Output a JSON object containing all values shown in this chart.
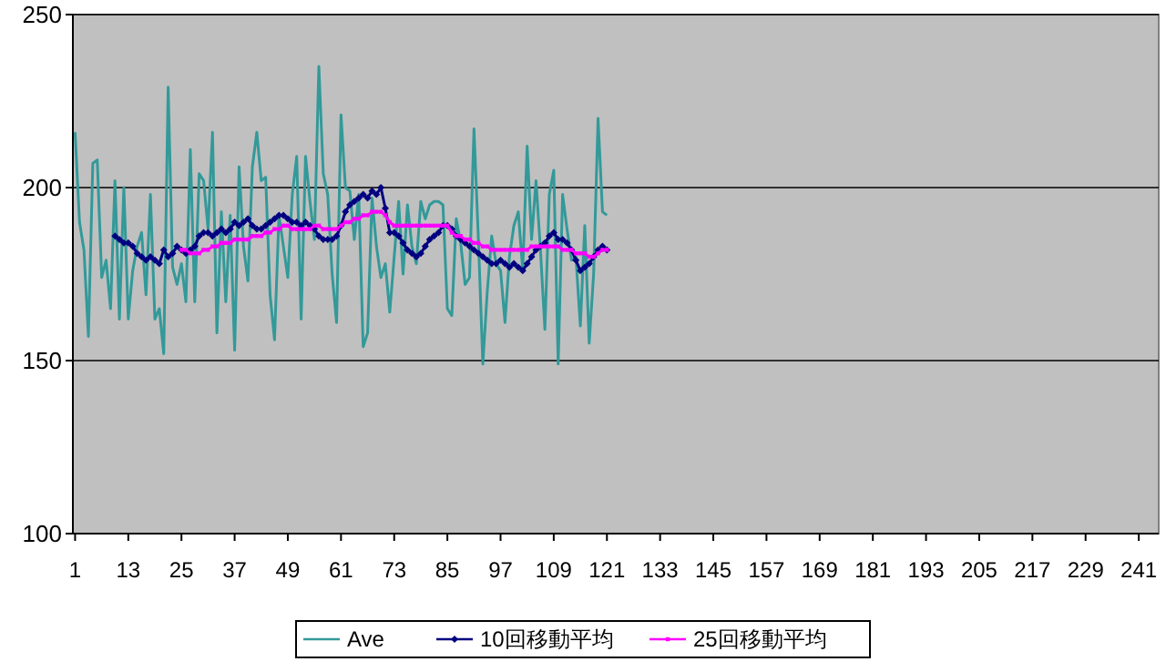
{
  "chart_data": {
    "type": "line",
    "x": [
      1,
      2,
      3,
      4,
      5,
      6,
      7,
      8,
      9,
      10,
      11,
      12,
      13,
      14,
      15,
      16,
      17,
      18,
      19,
      20,
      21,
      22,
      23,
      24,
      25,
      26,
      27,
      28,
      29,
      30,
      31,
      32,
      33,
      34,
      35,
      36,
      37,
      38,
      39,
      40,
      41,
      42,
      43,
      44,
      45,
      46,
      47,
      48,
      49,
      50,
      51,
      52,
      53,
      54,
      55,
      56,
      57,
      58,
      59,
      60,
      61,
      62,
      63,
      64,
      65,
      66,
      67,
      68,
      69,
      70,
      71,
      72,
      73,
      74,
      75,
      76,
      77,
      78,
      79,
      80,
      81,
      82,
      83,
      84,
      85,
      86,
      87,
      88,
      89,
      90,
      91,
      92,
      93,
      94,
      95,
      96,
      97,
      98,
      99,
      100,
      101,
      102,
      103,
      104,
      105,
      106,
      107,
      108,
      109,
      110,
      111,
      112,
      113,
      114,
      115,
      116,
      117,
      118,
      119,
      120,
      121
    ],
    "series": [
      {
        "name": "Ave",
        "color": "#339999",
        "marker": "none",
        "values": [
          216,
          190,
          182,
          157,
          207,
          208,
          174,
          179,
          165,
          202,
          162,
          200,
          162,
          176,
          183,
          187,
          169,
          198,
          162,
          165,
          152,
          229,
          177,
          172,
          178,
          167,
          211,
          167,
          204,
          202,
          188,
          216,
          158,
          193,
          167,
          192,
          153,
          206,
          183,
          173,
          206,
          216,
          202,
          203,
          169,
          156,
          192,
          183,
          174,
          198,
          209,
          162,
          209,
          196,
          185,
          235,
          204,
          198,
          175,
          161,
          221,
          200,
          199,
          185,
          198,
          154,
          158,
          197,
          183,
          174,
          178,
          164,
          180,
          196,
          175,
          195,
          183,
          178,
          196,
          191,
          195,
          196,
          196,
          195,
          165,
          163,
          191,
          184,
          172,
          174,
          217,
          185,
          149,
          170,
          186,
          178,
          176,
          161,
          180,
          189,
          193,
          176,
          212,
          185,
          202,
          182,
          159,
          198,
          205,
          149,
          198,
          188,
          179,
          180,
          160,
          189,
          155,
          175,
          220,
          193,
          192
        ]
      },
      {
        "name": "10回移動平均",
        "color": "#000080",
        "marker": "diamond",
        "values": [
          null,
          null,
          null,
          null,
          null,
          null,
          null,
          null,
          null,
          186,
          185,
          184,
          184,
          183,
          181,
          180,
          179,
          180,
          179,
          178,
          182,
          180,
          181,
          183,
          182,
          181,
          182,
          183,
          186,
          187,
          187,
          186,
          187,
          188,
          187,
          188,
          190,
          189,
          190,
          191,
          189,
          188,
          188,
          189,
          190,
          191,
          192,
          192,
          191,
          190,
          190,
          189,
          190,
          189,
          188,
          186,
          185,
          185,
          185,
          186,
          189,
          193,
          195,
          196,
          197,
          198,
          197,
          199,
          198,
          200,
          194,
          187,
          187,
          186,
          184,
          182,
          181,
          180,
          181,
          183,
          185,
          186,
          187,
          189,
          189,
          188,
          186,
          185,
          184,
          183,
          182,
          181,
          180,
          179,
          178,
          178,
          179,
          178,
          177,
          178,
          177,
          176,
          178,
          180,
          182,
          183,
          184,
          186,
          187,
          185,
          185,
          184,
          182,
          179,
          176,
          177,
          178,
          180,
          182,
          183,
          182
        ]
      },
      {
        "name": "25回移動平均",
        "color": "#ff00ff",
        "marker": "square",
        "values": [
          null,
          null,
          null,
          null,
          null,
          null,
          null,
          null,
          null,
          null,
          null,
          null,
          null,
          null,
          null,
          null,
          null,
          null,
          null,
          null,
          null,
          null,
          null,
          null,
          182,
          182,
          181,
          181,
          181,
          182,
          182,
          183,
          183,
          184,
          184,
          184,
          185,
          185,
          185,
          185,
          186,
          186,
          186,
          187,
          187,
          188,
          188,
          189,
          189,
          188,
          188,
          188,
          188,
          188,
          189,
          189,
          188,
          188,
          188,
          188,
          189,
          190,
          190,
          191,
          191,
          192,
          192,
          193,
          193,
          193,
          192,
          190,
          189,
          189,
          189,
          189,
          189,
          189,
          189,
          189,
          189,
          189,
          189,
          189,
          189,
          187,
          186,
          186,
          185,
          185,
          184,
          184,
          183,
          183,
          182,
          182,
          182,
          182,
          182,
          182,
          182,
          182,
          182,
          183,
          183,
          183,
          183,
          183,
          183,
          183,
          182,
          182,
          182,
          181,
          181,
          181,
          180,
          180,
          181,
          182,
          182
        ]
      }
    ],
    "xlim": [
      0.5,
      245.5
    ],
    "xticks": [
      1,
      13,
      25,
      37,
      49,
      61,
      73,
      85,
      97,
      109,
      121,
      133,
      145,
      157,
      169,
      181,
      193,
      205,
      217,
      229,
      241
    ],
    "ylim": [
      100,
      250
    ],
    "yticks": [
      100,
      150,
      200,
      250
    ],
    "grid": "y",
    "legend": "bottom",
    "line_style": "solid"
  }
}
